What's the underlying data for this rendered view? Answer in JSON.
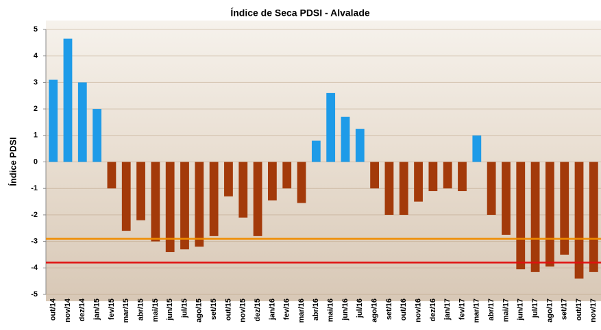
{
  "chart_data": {
    "type": "bar",
    "title": "Índice de Seca PDSI - Alvalade",
    "y_label": "Índice PDSI",
    "categories": [
      "out/14",
      "nov/14",
      "dez/14",
      "jan/15",
      "fev/15",
      "mar/15",
      "abr/15",
      "mai/15",
      "jun/15",
      "jul/15",
      "ago/15",
      "set/15",
      "out/15",
      "nov/15",
      "dez/15",
      "jan/16",
      "fev/16",
      "mar/16",
      "abr/16",
      "mai/16",
      "jun/16",
      "jul/16",
      "ago/16",
      "set/16",
      "out/16",
      "nov/16",
      "dez/16",
      "jan/17",
      "fev/17",
      "mar/17",
      "abr/17",
      "mai/17",
      "jun/17",
      "jul/17",
      "ago/17",
      "set/17",
      "out/17",
      "nov/17"
    ],
    "values": [
      3.1,
      4.65,
      3.0,
      2.0,
      -1.0,
      -2.6,
      -2.2,
      -3.0,
      -3.4,
      -3.3,
      -3.2,
      -2.8,
      -1.3,
      -2.1,
      -2.8,
      -1.45,
      -1.0,
      -1.55,
      0.8,
      2.6,
      1.7,
      1.25,
      -1.0,
      -2.0,
      -2.0,
      -1.5,
      -1.1,
      -1.0,
      -1.1,
      1.0,
      -2.0,
      -2.75,
      -4.05,
      -4.15,
      -3.95,
      -3.5,
      -4.4,
      -4.15
    ],
    "positive_color": "#1e9be8",
    "negative_color": "#a33a0a",
    "reference_lines": [
      {
        "value": -2.9,
        "color": "#f08c00"
      },
      {
        "value": -3.8,
        "color": "#e01010"
      }
    ],
    "ylim": [
      -5,
      5
    ],
    "yticks": [
      -5,
      -4,
      -3,
      -2,
      -1,
      0,
      1,
      2,
      3,
      4,
      5
    ],
    "grid": true
  }
}
